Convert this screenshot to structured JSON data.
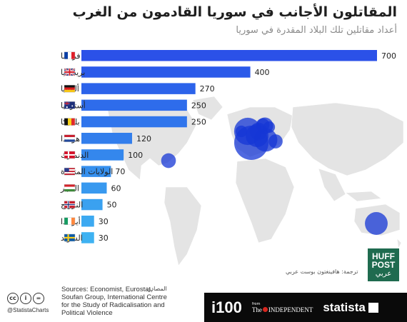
{
  "header": {
    "title": "المقاتلون الأجانب في سوريا القادمون من الغرب",
    "subtitle": "أعداد مقاتلين تلك البلاد المقدرة في سوريا"
  },
  "chart_data": {
    "type": "bar",
    "orientation": "horizontal",
    "categories": [
      "فرنسا",
      "بريطانيا",
      "ألمانيا",
      "أستراليا",
      "بلجيكا",
      "هولندا",
      "الدنمارك",
      "الولايات المتحدة",
      "المجر",
      "النرويج",
      "أيرلندا",
      "السويد"
    ],
    "values": [
      700,
      400,
      270,
      250,
      250,
      120,
      100,
      70,
      60,
      50,
      30,
      30
    ],
    "value_labels": [
      "700",
      "400",
      "270",
      "250",
      "250",
      "120",
      "100",
      "70",
      "60",
      "50",
      "30",
      "30"
    ],
    "flags": [
      "flag-france",
      "flag-uk",
      "flag-germany",
      "flag-australia",
      "flag-belgium",
      "flag-netherlands",
      "flag-denmark",
      "flag-usa",
      "flag-hungary",
      "flag-norway",
      "flag-ireland",
      "flag-sweden"
    ],
    "xlim": [
      0,
      700
    ],
    "bar_colors": [
      "#2b51e8",
      "#2b5ae9",
      "#2c63ea",
      "#2e6ceb",
      "#3075ec",
      "#327eec",
      "#3487ed",
      "#3690ee",
      "#3899ef",
      "#3aa1f0",
      "#3ca9f1",
      "#3eb2f2"
    ],
    "map": {
      "land_color": "#e4e4e4",
      "bubble_color": "#1537d6"
    }
  },
  "colors": {
    "title": "#1f1f1f",
    "subtitle": "#8a8a8a",
    "footer_bg": "#0a0a0a",
    "huffpost_green": "#1f6b4f"
  },
  "credit": "ترجمة: هافينغتون بوست عربي",
  "huffpost": {
    "line1": "HUFF",
    "line2": "POST",
    "line3": "عربي"
  },
  "footer": {
    "handle": "@StatistaCharts",
    "sources_label": "المصادر:",
    "sources": "Sources: Economist, Eurostat, Soufan Group, International Centre for the Study of Radicalisation and Political Violence",
    "i100": "i100",
    "from": "from",
    "the": "The",
    "independent": "INDEPENDENT",
    "statista": "statista"
  }
}
